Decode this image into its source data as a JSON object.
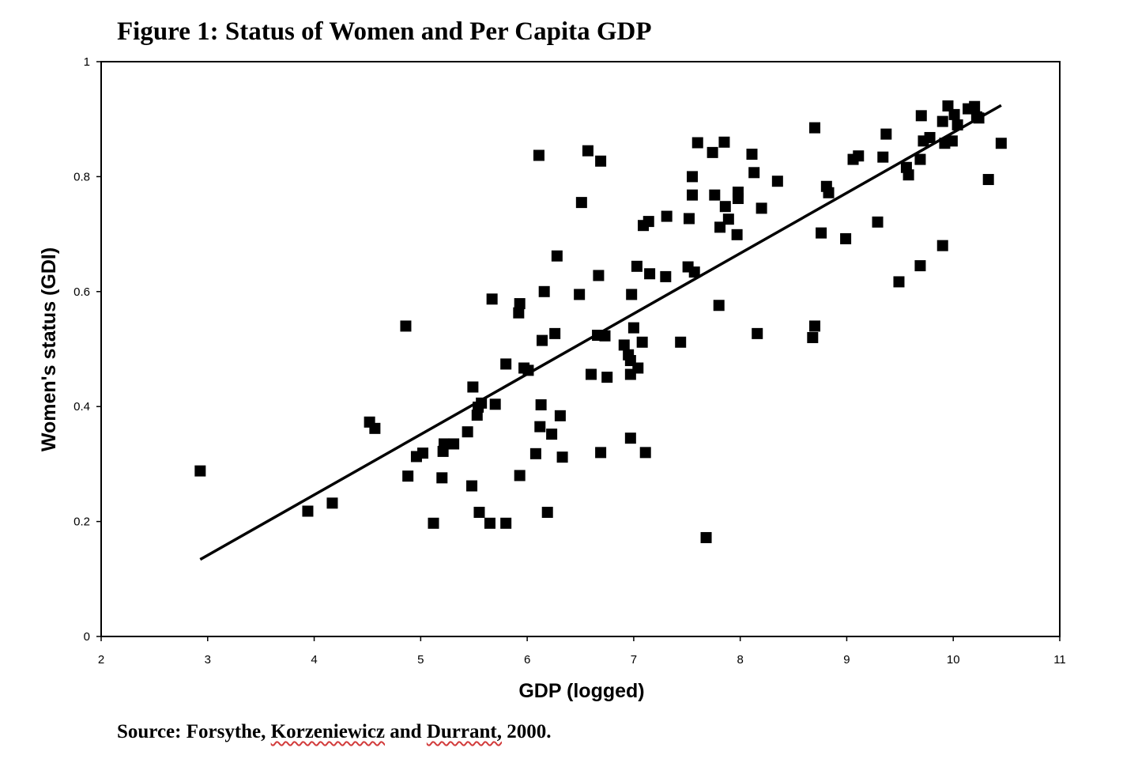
{
  "figure": {
    "title": "Figure 1: Status of Women and Per Capita GDP",
    "source": {
      "prefix": "Source:",
      "author1": "Forsythe,",
      "author2": "Korzeniewicz",
      "connector": "and",
      "author3": "Durrant,",
      "year": "2000."
    }
  },
  "chart_data": {
    "type": "scatter",
    "title": "Figure 1: Status of Women and Per Capita GDP",
    "xlabel": "GDP (logged)",
    "ylabel": "Women's status (GDI)",
    "xlim": [
      2,
      11
    ],
    "ylim": [
      0,
      1
    ],
    "x_ticks": [
      "2",
      "3",
      "4",
      "5",
      "6",
      "7",
      "8",
      "9",
      "10",
      "11"
    ],
    "y_ticks": [
      "0",
      "0.2",
      "0.4",
      "0.6",
      "0.8",
      "1"
    ],
    "grid": false,
    "legend": "none",
    "marker": "square",
    "colors": {
      "points": "#000000",
      "trendline": "#000000",
      "frame": "#000000"
    },
    "points": [
      [
        2.93,
        0.288
      ],
      [
        3.94,
        0.218
      ],
      [
        4.17,
        0.232
      ],
      [
        4.52,
        0.373
      ],
      [
        4.57,
        0.362
      ],
      [
        4.86,
        0.54
      ],
      [
        4.88,
        0.279
      ],
      [
        4.96,
        0.313
      ],
      [
        5.02,
        0.319
      ],
      [
        5.12,
        0.197
      ],
      [
        5.2,
        0.276
      ],
      [
        5.21,
        0.322
      ],
      [
        5.22,
        0.335
      ],
      [
        5.31,
        0.335
      ],
      [
        5.44,
        0.356
      ],
      [
        5.48,
        0.262
      ],
      [
        5.49,
        0.434
      ],
      [
        5.53,
        0.385
      ],
      [
        5.54,
        0.399
      ],
      [
        5.57,
        0.406
      ],
      [
        5.55,
        0.216
      ],
      [
        5.65,
        0.197
      ],
      [
        5.67,
        0.587
      ],
      [
        5.7,
        0.404
      ],
      [
        5.8,
        0.197
      ],
      [
        5.8,
        0.474
      ],
      [
        5.92,
        0.563
      ],
      [
        5.93,
        0.579
      ],
      [
        5.93,
        0.28
      ],
      [
        5.97,
        0.467
      ],
      [
        6.01,
        0.463
      ],
      [
        6.08,
        0.318
      ],
      [
        6.11,
        0.837
      ],
      [
        6.12,
        0.365
      ],
      [
        6.13,
        0.403
      ],
      [
        6.14,
        0.515
      ],
      [
        6.16,
        0.6
      ],
      [
        6.19,
        0.216
      ],
      [
        6.23,
        0.352
      ],
      [
        6.26,
        0.527
      ],
      [
        6.28,
        0.662
      ],
      [
        6.31,
        0.384
      ],
      [
        6.33,
        0.312
      ],
      [
        6.49,
        0.595
      ],
      [
        6.51,
        0.755
      ],
      [
        6.57,
        0.845
      ],
      [
        6.6,
        0.456
      ],
      [
        6.66,
        0.524
      ],
      [
        6.67,
        0.628
      ],
      [
        6.69,
        0.32
      ],
      [
        6.69,
        0.827
      ],
      [
        6.73,
        0.523
      ],
      [
        6.75,
        0.451
      ],
      [
        6.91,
        0.507
      ],
      [
        6.95,
        0.49
      ],
      [
        6.97,
        0.48
      ],
      [
        6.97,
        0.456
      ],
      [
        6.97,
        0.345
      ],
      [
        6.98,
        0.595
      ],
      [
        7.0,
        0.537
      ],
      [
        7.03,
        0.644
      ],
      [
        7.04,
        0.467
      ],
      [
        7.08,
        0.512
      ],
      [
        7.09,
        0.715
      ],
      [
        7.11,
        0.32
      ],
      [
        7.14,
        0.722
      ],
      [
        7.15,
        0.631
      ],
      [
        7.3,
        0.626
      ],
      [
        7.31,
        0.731
      ],
      [
        7.44,
        0.512
      ],
      [
        7.51,
        0.643
      ],
      [
        7.52,
        0.727
      ],
      [
        7.55,
        0.8
      ],
      [
        7.55,
        0.768
      ],
      [
        7.57,
        0.634
      ],
      [
        7.6,
        0.859
      ],
      [
        7.68,
        0.172
      ],
      [
        7.74,
        0.842
      ],
      [
        7.76,
        0.768
      ],
      [
        7.8,
        0.576
      ],
      [
        7.81,
        0.712
      ],
      [
        7.85,
        0.86
      ],
      [
        7.86,
        0.748
      ],
      [
        7.89,
        0.726
      ],
      [
        7.97,
        0.699
      ],
      [
        7.98,
        0.773
      ],
      [
        7.98,
        0.762
      ],
      [
        8.11,
        0.839
      ],
      [
        8.13,
        0.807
      ],
      [
        8.16,
        0.527
      ],
      [
        8.2,
        0.745
      ],
      [
        8.35,
        0.792
      ],
      [
        8.68,
        0.52
      ],
      [
        8.7,
        0.885
      ],
      [
        8.7,
        0.54
      ],
      [
        8.76,
        0.702
      ],
      [
        8.81,
        0.783
      ],
      [
        8.83,
        0.772
      ],
      [
        8.99,
        0.692
      ],
      [
        9.06,
        0.83
      ],
      [
        9.11,
        0.836
      ],
      [
        9.29,
        0.721
      ],
      [
        9.34,
        0.834
      ],
      [
        9.37,
        0.874
      ],
      [
        9.49,
        0.617
      ],
      [
        9.56,
        0.816
      ],
      [
        9.58,
        0.803
      ],
      [
        9.69,
        0.645
      ],
      [
        9.69,
        0.83
      ],
      [
        9.7,
        0.906
      ],
      [
        9.72,
        0.862
      ],
      [
        9.78,
        0.868
      ],
      [
        9.9,
        0.896
      ],
      [
        9.9,
        0.68
      ],
      [
        9.92,
        0.858
      ],
      [
        9.95,
        0.923
      ],
      [
        9.99,
        0.862
      ],
      [
        10.01,
        0.908
      ],
      [
        10.04,
        0.89
      ],
      [
        10.14,
        0.918
      ],
      [
        10.2,
        0.922
      ],
      [
        10.22,
        0.904
      ],
      [
        10.24,
        0.902
      ],
      [
        10.33,
        0.795
      ],
      [
        10.45,
        0.858
      ]
    ],
    "trendline": {
      "x": [
        2.93,
        10.45
      ],
      "y": [
        0.134,
        0.924
      ]
    }
  }
}
